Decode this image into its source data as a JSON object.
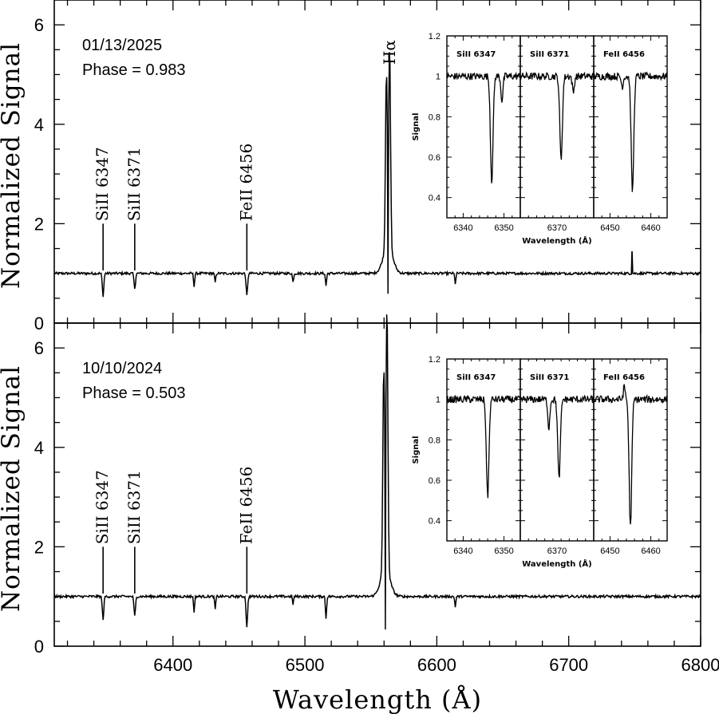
{
  "chart_data": {
    "type": "line",
    "xlabel": "Wavelength (Å)",
    "ylabel": "Normalized Signal",
    "xlim": [
      6310,
      6800
    ],
    "x_ticks": [
      6400,
      6500,
      6600,
      6700,
      6800
    ],
    "panels": [
      {
        "id": "top",
        "date": "01/13/2025",
        "phase": "Phase = 0.983",
        "ylim": [
          0,
          6.5
        ],
        "y_ticks": [
          0,
          2,
          4,
          6
        ],
        "baseline": 1.0,
        "lines": [
          {
            "label": "SiII 6347",
            "wavelength": 6347,
            "depth": 0.45
          },
          {
            "label": "SiII 6371",
            "wavelength": 6371,
            "depth": 0.3
          },
          {
            "label": "FeII 6456",
            "wavelength": 6456,
            "depth": 0.45
          }
        ],
        "minor_absorptions": [
          {
            "wavelength": 6416,
            "depth": 0.25
          },
          {
            "wavelength": 6432,
            "depth": 0.18
          },
          {
            "wavelength": 6491,
            "depth": 0.18
          },
          {
            "wavelength": 6516,
            "depth": 0.25
          },
          {
            "wavelength": 6614,
            "depth": 0.2
          }
        ],
        "emission": {
          "label": "Hα",
          "center": 6563,
          "blue_peak": 4.55,
          "red_peak": 5.05,
          "central_min": 0.6
        },
        "spike": {
          "wavelength": 6748,
          "value": 1.5
        },
        "inset": {
          "ylabel": "Signal",
          "xlabel": "Wavelength (Å)",
          "ylim": [
            0.3,
            1.2
          ],
          "y_ticks": [
            "0.4",
            "0.6",
            "0.8",
            "1",
            "1.2"
          ],
          "subpanels": [
            {
              "label": "SiII 6347",
              "xlim": [
                6336,
                6354
              ],
              "x_ticks": [
                6340,
                6350
              ],
              "min_at": 6347,
              "min_value": 0.48,
              "secondary": {
                "at": 6349.5,
                "value": 0.88
              }
            },
            {
              "label": "SiII 6371",
              "xlim": [
                6361,
                6379
              ],
              "x_ticks": [
                6370
              ],
              "min_at": 6371,
              "min_value": 0.59,
              "secondary": {
                "at": 6374,
                "value": 0.92
              }
            },
            {
              "label": "FeII 6456",
              "xlim": [
                6446,
                6464
              ],
              "x_ticks": [
                6450,
                6460
              ],
              "min_at": 6455.5,
              "min_value": 0.43,
              "secondary": {
                "at": 6453,
                "value": 0.95
              }
            }
          ]
        }
      },
      {
        "id": "bottom",
        "date": "10/10/2024",
        "phase": "Phase = 0.503",
        "ylim": [
          0,
          6.5
        ],
        "y_ticks": [
          0,
          2,
          4,
          6
        ],
        "baseline": 1.0,
        "lines": [
          {
            "label": "SiII 6347",
            "wavelength": 6347,
            "depth": 0.45
          },
          {
            "label": "SiII 6371",
            "wavelength": 6371,
            "depth": 0.4
          },
          {
            "label": "FeII 6456",
            "wavelength": 6456,
            "depth": 0.6
          }
        ],
        "minor_absorptions": [
          {
            "wavelength": 6416,
            "depth": 0.3
          },
          {
            "wavelength": 6432,
            "depth": 0.25
          },
          {
            "wavelength": 6491,
            "depth": 0.15
          },
          {
            "wavelength": 6516,
            "depth": 0.45
          },
          {
            "wavelength": 6614,
            "depth": 0.2
          }
        ],
        "emission": {
          "label": "",
          "center": 6561,
          "blue_peak": 5.1,
          "red_peak": 6.3,
          "central_min": 0.35
        },
        "spike": null,
        "inset": {
          "ylabel": "Signal",
          "xlabel": "Wavelength (Å)",
          "ylim": [
            0.3,
            1.2
          ],
          "y_ticks": [
            "0.4",
            "0.6",
            "0.8",
            "1",
            "1.2"
          ],
          "subpanels": [
            {
              "label": "SiII 6347",
              "xlim": [
                6336,
                6354
              ],
              "x_ticks": [
                6340,
                6350
              ],
              "min_at": 6346,
              "min_value": 0.52,
              "secondary": null
            },
            {
              "label": "SiII 6371",
              "xlim": [
                6361,
                6379
              ],
              "x_ticks": [
                6370
              ],
              "min_at": 6370.5,
              "min_value": 0.61,
              "secondary": {
                "at": 6368,
                "value": 0.86
              }
            },
            {
              "label": "FeII 6456",
              "xlim": [
                6446,
                6464
              ],
              "x_ticks": [
                6450,
                6460
              ],
              "min_at": 6455,
              "min_value": 0.37,
              "secondary": {
                "at": 6453.5,
                "value": 1.06
              }
            }
          ]
        }
      }
    ]
  }
}
